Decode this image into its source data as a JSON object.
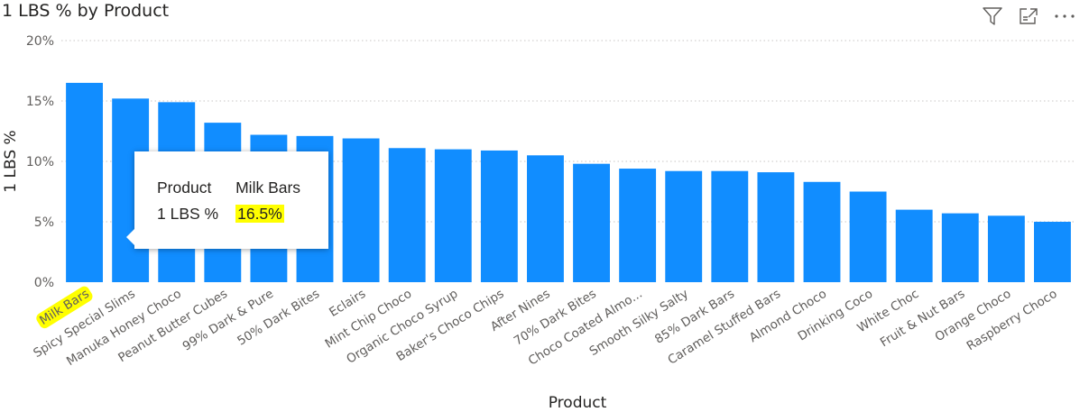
{
  "header": {
    "title": "1 LBS % by Product",
    "icons": [
      "filter-icon",
      "focus-mode-icon",
      "more-options-icon"
    ]
  },
  "colors": {
    "bar": "#118DFF",
    "highlight": "#FFFF00",
    "gridline": "#C8C6C4"
  },
  "tooltip": {
    "field_label": "Product",
    "field_value": "Milk Bars",
    "measure_label": "1 LBS %",
    "measure_value": "16.5%"
  },
  "chart_data": {
    "type": "bar",
    "title": "1 LBS % by Product",
    "xlabel": "Product",
    "ylabel": "1 LBS %",
    "ylim": [
      0,
      20
    ],
    "yticks": [
      "0%",
      "5%",
      "10%",
      "15%",
      "20%"
    ],
    "grid": true,
    "highlighted_category": "Milk Bars",
    "categories": [
      "Milk Bars",
      "Spicy Special Slims",
      "Manuka Honey Choco",
      "Peanut Butter Cubes",
      "99% Dark & Pure",
      "50% Dark Bites",
      "Eclairs",
      "Mint Chip Choco",
      "Organic Choco Syrup",
      "Baker's Choco Chips",
      "After Nines",
      "70% Dark Bites",
      "Choco Coated Almo...",
      "Smooth Silky Salty",
      "85% Dark Bars",
      "Caramel Stuffed Bars",
      "Almond Choco",
      "Drinking Coco",
      "White Choc",
      "Fruit & Nut Bars",
      "Orange Choco",
      "Raspberry Choco"
    ],
    "values": [
      16.5,
      15.2,
      14.9,
      13.2,
      12.2,
      12.1,
      11.9,
      11.1,
      11.0,
      10.9,
      10.5,
      9.8,
      9.4,
      9.2,
      9.2,
      9.1,
      8.3,
      7.5,
      6.0,
      5.7,
      5.5,
      5.0
    ]
  }
}
